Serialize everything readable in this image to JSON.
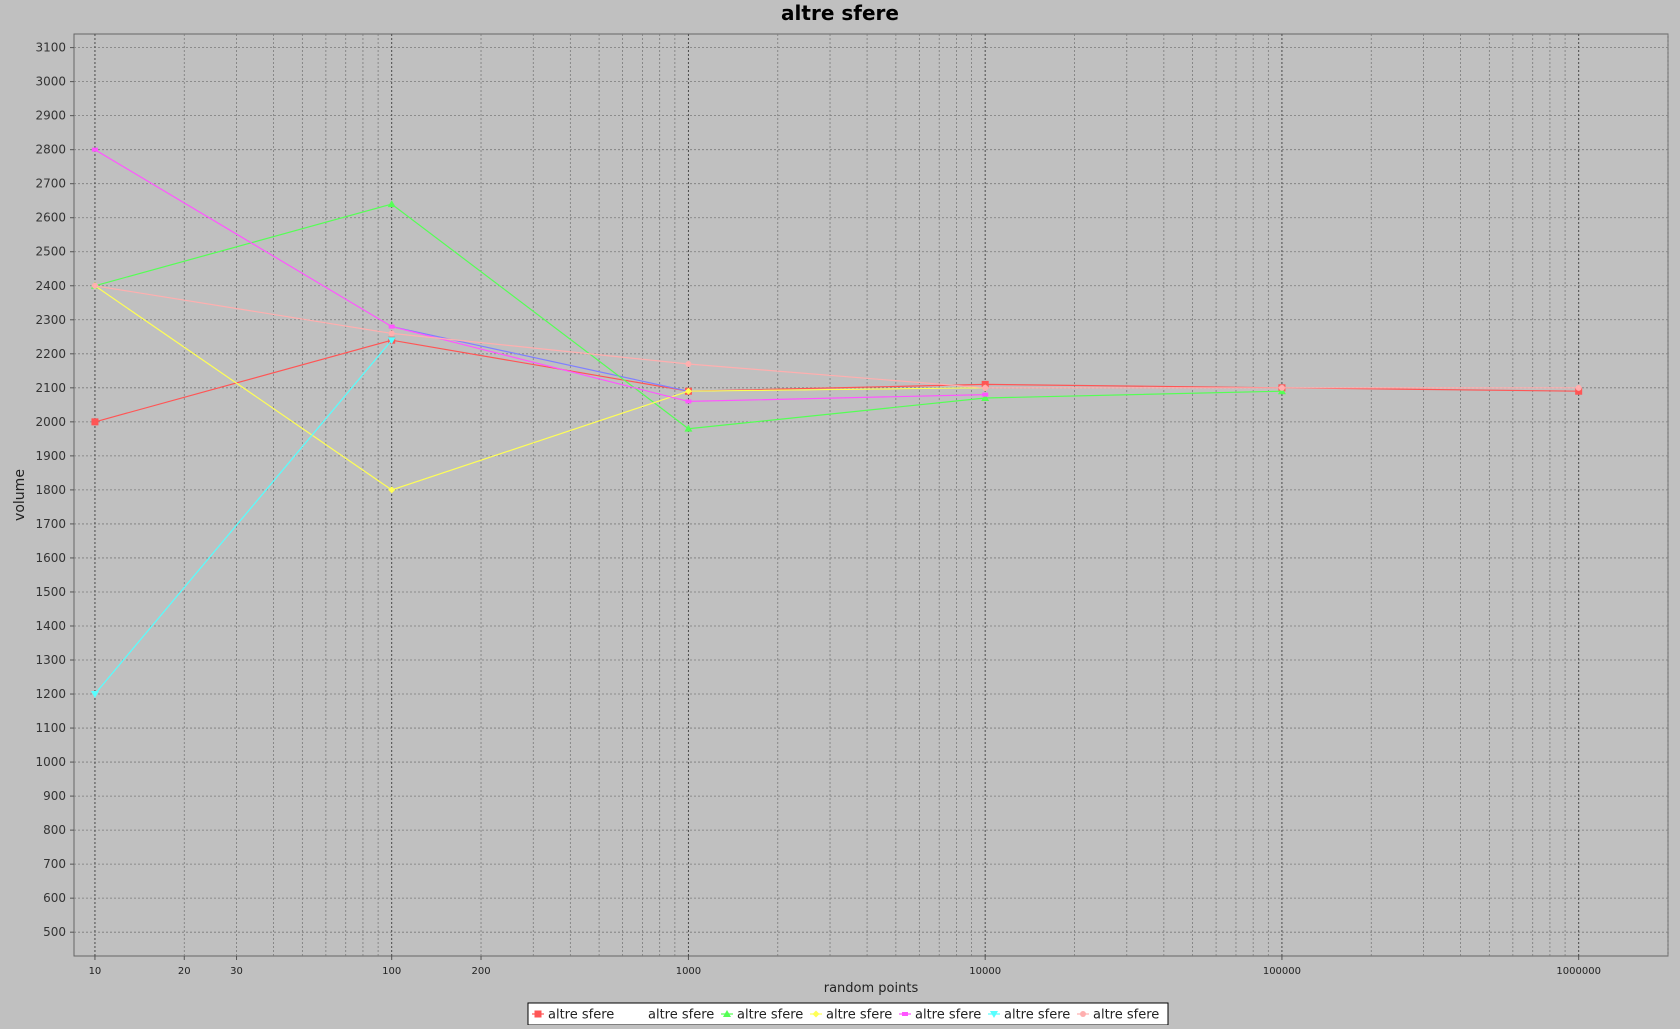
{
  "chart_data": {
    "type": "line",
    "title": "altre sfere",
    "xlabel": "random points",
    "ylabel": "volume",
    "x_scale": "log",
    "xlim": [
      8.5,
      2000000
    ],
    "ylim": [
      430,
      3140
    ],
    "grid": true,
    "legend_position": "bottom-center",
    "y_ticks": [
      500,
      600,
      700,
      800,
      900,
      1000,
      1100,
      1200,
      1300,
      1400,
      1500,
      1600,
      1700,
      1800,
      1900,
      2000,
      2100,
      2200,
      2300,
      2400,
      2500,
      2600,
      2700,
      2800,
      2900,
      3000,
      3100
    ],
    "x_tick_labels": [
      {
        "value": 10,
        "label": "10"
      },
      {
        "value": 20,
        "label": "20"
      },
      {
        "value": 30,
        "label": "30"
      },
      {
        "value": 100,
        "label": "100"
      },
      {
        "value": 200,
        "label": "200"
      },
      {
        "value": 1000,
        "label": "1000"
      },
      {
        "value": 10000,
        "label": "10000"
      },
      {
        "value": 100000,
        "label": "100000"
      },
      {
        "value": 1000000,
        "label": "1000000"
      }
    ],
    "series": [
      {
        "name": "altre sfere",
        "color": "#ff5555",
        "marker": "square",
        "x": [
          10,
          100,
          1000,
          10000,
          100000,
          1000000
        ],
        "y": [
          2000,
          2240,
          2090,
          2110,
          2100,
          2090
        ]
      },
      {
        "name": "altre sfere",
        "color": "#8080ff",
        "marker": "none",
        "x": [
          100,
          1000,
          10000
        ],
        "y": [
          2280,
          2090,
          2100
        ]
      },
      {
        "name": "altre sfere",
        "color": "#55ff55",
        "marker": "triangle-up",
        "x": [
          10,
          100,
          1000,
          10000,
          100000
        ],
        "y": [
          2400,
          2640,
          1980,
          2070,
          2090
        ]
      },
      {
        "name": "altre sfere",
        "color": "#ffff55",
        "marker": "diamond",
        "x": [
          10,
          100,
          1000,
          10000
        ],
        "y": [
          2400,
          1800,
          2090,
          2100
        ]
      },
      {
        "name": "altre sfere",
        "color": "#ff55ff",
        "marker": "square-small",
        "x": [
          10,
          100,
          1000,
          10000
        ],
        "y": [
          2800,
          2280,
          2060,
          2080
        ]
      },
      {
        "name": "altre sfere",
        "color": "#55ffff",
        "marker": "triangle-down",
        "x": [
          10,
          100
        ],
        "y": [
          1200,
          2240
        ]
      },
      {
        "name": "altre sfere",
        "color": "#ffafaf",
        "marker": "circle",
        "x": [
          10,
          100,
          1000,
          10000,
          100000,
          1000000
        ],
        "y": [
          2400,
          2260,
          2170,
          2100,
          2100,
          2100
        ]
      }
    ]
  }
}
